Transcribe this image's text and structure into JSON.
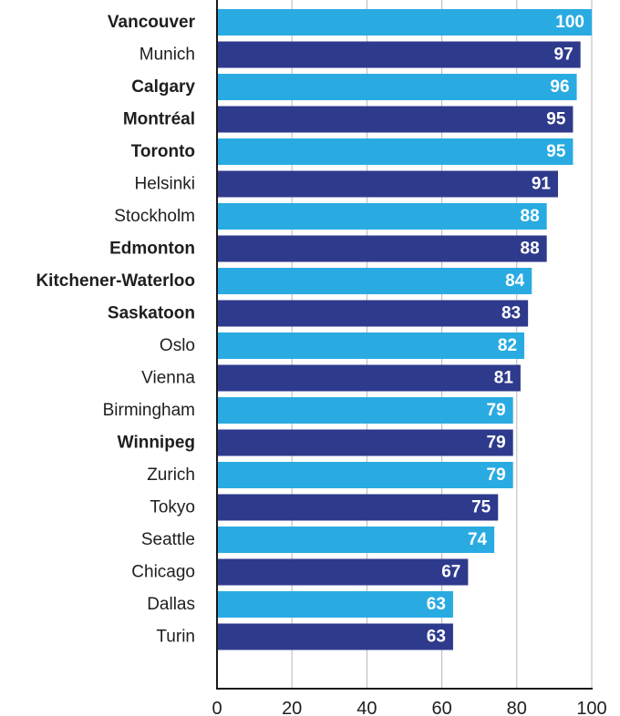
{
  "chart_data": {
    "type": "bar",
    "orientation": "horizontal",
    "title": "",
    "xlabel": "",
    "ylabel": "",
    "xlim": [
      0,
      100
    ],
    "x_ticks": [
      0,
      20,
      40,
      60,
      80,
      100
    ],
    "grid": true,
    "legend": "none",
    "categories": [
      "Vancouver",
      "Munich",
      "Calgary",
      "Montréal",
      "Toronto",
      "Helsinki",
      "Stockholm",
      "Edmonton",
      "Kitchener-Waterloo",
      "Saskatoon",
      "Oslo",
      "Vienna",
      "Birmingham",
      "Winnipeg",
      "Zurich",
      "Tokyo",
      "Seattle",
      "Chicago",
      "Dallas",
      "Turin"
    ],
    "values": [
      100,
      97,
      96,
      95,
      95,
      91,
      88,
      88,
      84,
      83,
      82,
      81,
      79,
      79,
      79,
      75,
      74,
      67,
      63,
      63
    ],
    "bold_categories": [
      "Vancouver",
      "Calgary",
      "Montréal",
      "Toronto",
      "Edmonton",
      "Kitchener-Waterloo",
      "Saskatoon",
      "Winnipeg"
    ],
    "colors": {
      "bar_light": "#29abe2",
      "bar_dark": "#2e3a8c",
      "value_text": "#ffffff",
      "gridline": "#b7b7b7",
      "axis": "#1a1a1a"
    }
  }
}
